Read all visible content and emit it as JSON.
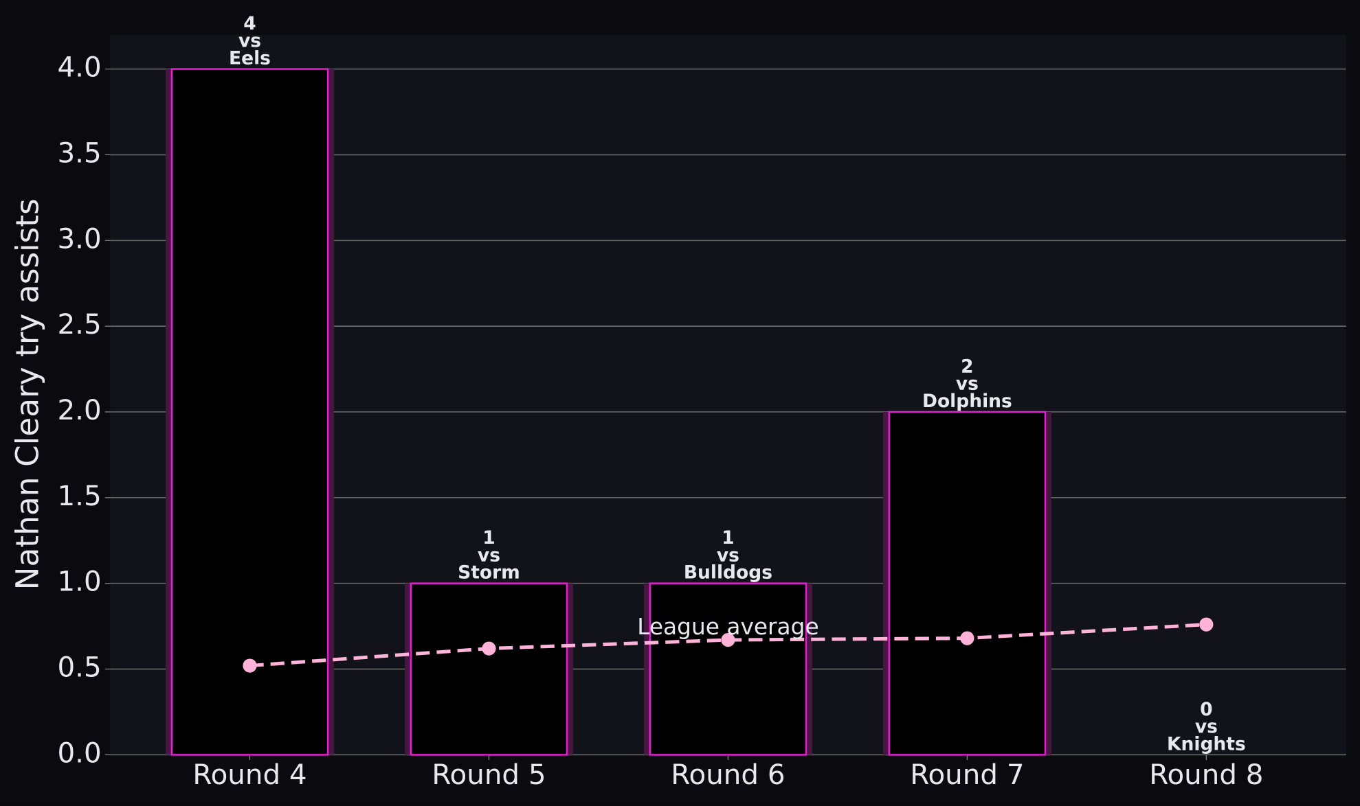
{
  "chart_data": {
    "type": "bar",
    "y_label": "Nathan Cleary try assists",
    "categories": [
      "Round 4",
      "Round 5",
      "Round 6",
      "Round 7",
      "Round 8"
    ],
    "values": [
      4,
      1,
      1,
      2,
      0
    ],
    "value_labels": [
      "4\nvs\nEels",
      "1\nvs\nStorm",
      "1\nvs\nBulldogs",
      "2\nvs\nDolphins",
      "0\nvs\nKnights"
    ],
    "color": "#000000",
    "edge_color": "#e020d0",
    "line_series": {
      "name": "League average",
      "color": "#ffb3d9",
      "values": [
        0.52,
        0.62,
        0.67,
        0.68,
        0.76
      ]
    },
    "ylim": [
      0,
      4.2
    ],
    "yticks": [
      {
        "value": 0,
        "label": "0.0"
      },
      {
        "value": 0.5,
        "label": "0.5"
      },
      {
        "value": 1,
        "label": "1.0"
      },
      {
        "value": 1.5,
        "label": "1.5"
      },
      {
        "value": 2,
        "label": "2.0"
      },
      {
        "value": 2.5,
        "label": "2.5"
      },
      {
        "value": 3,
        "label": "3.0"
      },
      {
        "value": 3.5,
        "label": "3.5"
      },
      {
        "value": 4,
        "label": "4.0"
      }
    ],
    "grid": true
  }
}
